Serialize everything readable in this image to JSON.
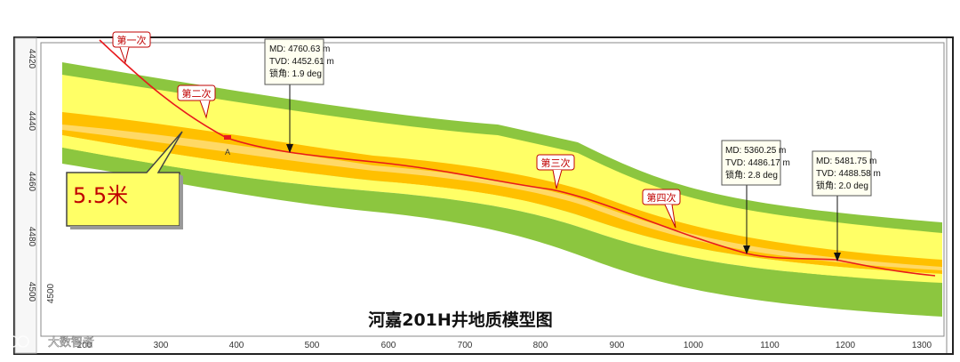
{
  "diagram": {
    "title": "河嘉201H井地质模型图",
    "thickness_label": "5.5米",
    "point_label": "A",
    "y_axis": {
      "ticks": [
        "4420",
        "4440",
        "4460",
        "4480",
        "4500"
      ]
    },
    "x_axis": {
      "ticks": [
        "200",
        "300",
        "400",
        "500",
        "600",
        "700",
        "800",
        "900",
        "1000",
        "1100",
        "1200",
        "1300"
      ]
    },
    "attempts": [
      "第一次",
      "第二次",
      "第三次",
      "第四次"
    ],
    "callouts": [
      {
        "md": "MD: 4760.63 m",
        "tvd": "TVD: 4452.61 m",
        "inc": "锁角: 1.9 deg"
      },
      {
        "md": "MD: 5360.25 m",
        "tvd": "TVD: 4486.17 m",
        "inc": "锁角: 2.8 deg"
      },
      {
        "md": "MD: 5481.75 m",
        "tvd": "TVD: 4488.58 m",
        "inc": "锁角: 2.0 deg"
      }
    ],
    "colors": {
      "green_layer": "#8cc63f",
      "yellow_layer": "#ffff66",
      "orange_layer": "#ffc000",
      "light_orange": "#ffd966",
      "trajectory": "#e8191d",
      "callout_box": "#fffff0"
    },
    "watermark": "大数智者"
  }
}
